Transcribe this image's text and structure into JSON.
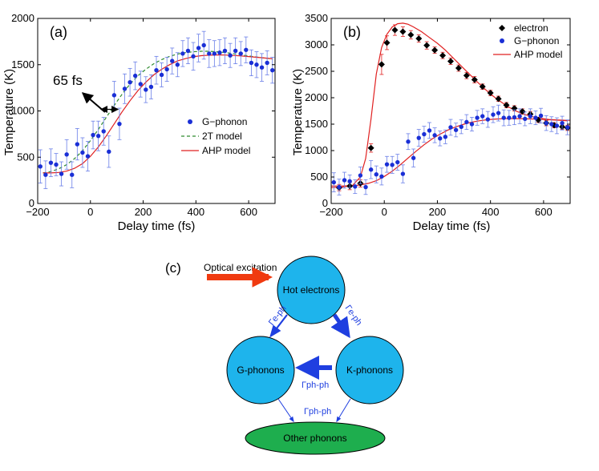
{
  "chart_data": [
    {
      "id": "a",
      "type": "scatter+line",
      "panel_label": "(a)",
      "xlabel": "Delay time (fs)",
      "ylabel": "Temperature (K)",
      "xlim": [
        -200,
        700
      ],
      "ylim": [
        0,
        2000
      ],
      "xticks": [
        -200,
        0,
        200,
        400,
        600
      ],
      "yticks": [
        0,
        500,
        1000,
        1500,
        2000
      ],
      "legend_position": "right-middle",
      "annotation": {
        "text": "65 fs",
        "x1": 40,
        "x2": 105,
        "y": 1000
      },
      "series": [
        {
          "name": "G−phonon",
          "kind": "points-with-errorbars",
          "color": "#1a2fd6",
          "x": [
            -190,
            -170,
            -150,
            -130,
            -110,
            -90,
            -70,
            -50,
            -30,
            -10,
            10,
            30,
            50,
            70,
            90,
            110,
            130,
            150,
            170,
            190,
            210,
            230,
            250,
            270,
            290,
            310,
            330,
            350,
            370,
            390,
            410,
            430,
            450,
            470,
            490,
            510,
            530,
            550,
            570,
            590,
            610,
            630,
            650,
            670,
            690
          ],
          "y": [
            400,
            310,
            440,
            420,
            320,
            530,
            310,
            640,
            550,
            510,
            740,
            730,
            780,
            560,
            1170,
            860,
            1240,
            1310,
            1380,
            1290,
            1230,
            1260,
            1440,
            1390,
            1450,
            1540,
            1500,
            1620,
            1650,
            1590,
            1680,
            1710,
            1620,
            1620,
            1630,
            1650,
            1600,
            1650,
            1620,
            1660,
            1520,
            1500,
            1470,
            1520,
            1440
          ],
          "err": [
            180,
            150,
            150,
            120,
            130,
            160,
            140,
            170,
            160,
            160,
            150,
            160,
            150,
            170,
            150,
            170,
            160,
            150,
            150,
            140,
            140,
            130,
            150,
            130,
            130,
            140,
            130,
            140,
            140,
            150,
            150,
            150,
            150,
            140,
            140,
            140,
            130,
            140,
            130,
            140,
            140,
            140,
            150,
            130,
            140
          ]
        },
        {
          "name": "2T model",
          "kind": "dashed-line",
          "color": "#2e8b2e",
          "x": [
            -180,
            -150,
            -120,
            -90,
            -60,
            -30,
            0,
            30,
            60,
            90,
            120,
            150,
            180,
            210,
            240,
            270,
            300,
            330,
            360,
            390,
            420,
            450,
            480,
            510,
            540,
            570,
            600,
            630,
            660,
            690
          ],
          "y": [
            330,
            345,
            375,
            420,
            485,
            570,
            680,
            800,
            930,
            1060,
            1180,
            1290,
            1380,
            1450,
            1510,
            1555,
            1590,
            1615,
            1630,
            1640,
            1645,
            1645,
            1640,
            1632,
            1620,
            1607,
            1595,
            1583,
            1572,
            1562
          ]
        },
        {
          "name": "AHP model",
          "kind": "line",
          "color": "#e02020",
          "x": [
            -180,
            -150,
            -120,
            -90,
            -60,
            -30,
            0,
            30,
            60,
            90,
            120,
            150,
            180,
            210,
            240,
            270,
            300,
            330,
            360,
            390,
            420,
            450,
            480,
            510,
            540,
            570,
            600,
            630,
            660,
            690
          ],
          "y": [
            330,
            330,
            335,
            350,
            380,
            430,
            510,
            610,
            730,
            860,
            990,
            1110,
            1220,
            1310,
            1390,
            1450,
            1500,
            1540,
            1565,
            1585,
            1597,
            1603,
            1605,
            1604,
            1600,
            1595,
            1588,
            1580,
            1572,
            1564
          ]
        }
      ]
    },
    {
      "id": "b",
      "type": "scatter+line",
      "panel_label": "(b)",
      "xlabel": "Delay time (fs)",
      "ylabel": "Temperature (K)",
      "xlim": [
        -200,
        700
      ],
      "ylim": [
        0,
        3500
      ],
      "xticks": [
        -200,
        0,
        200,
        400,
        600
      ],
      "yticks": [
        0,
        500,
        1000,
        1500,
        2000,
        2500,
        3000,
        3500
      ],
      "legend_position": "top-right",
      "series": [
        {
          "name": "electron",
          "kind": "diamond-points",
          "color": "#000000",
          "x": [
            -170,
            -130,
            -90,
            -50,
            -10,
            10,
            40,
            70,
            100,
            130,
            160,
            190,
            220,
            250,
            280,
            310,
            340,
            370,
            400,
            430,
            460,
            490,
            520,
            550,
            580,
            610,
            640,
            670,
            690
          ],
          "y": [
            300,
            330,
            380,
            1050,
            2630,
            3040,
            3280,
            3250,
            3190,
            3120,
            2990,
            2900,
            2800,
            2690,
            2560,
            2420,
            2340,
            2210,
            2090,
            1980,
            1860,
            1800,
            1740,
            1690,
            1580,
            1520,
            1480,
            1450,
            1430
          ],
          "err": [
            60,
            70,
            70,
            80,
            190,
            130,
            100,
            90,
            80,
            70,
            70,
            60,
            60,
            60,
            60,
            60,
            60,
            50,
            50,
            50,
            50,
            50,
            50,
            50,
            50,
            50,
            50,
            50,
            50
          ]
        },
        {
          "name": "G−phonon",
          "kind": "points-with-errorbars",
          "color": "#1a2fd6",
          "x": [
            -190,
            -170,
            -150,
            -130,
            -110,
            -90,
            -70,
            -50,
            -30,
            -10,
            10,
            30,
            50,
            70,
            90,
            110,
            130,
            150,
            170,
            190,
            210,
            230,
            250,
            270,
            290,
            310,
            330,
            350,
            370,
            390,
            410,
            430,
            450,
            470,
            490,
            510,
            530,
            550,
            570,
            590,
            610,
            630,
            650,
            670,
            690
          ],
          "y": [
            400,
            310,
            440,
            420,
            320,
            530,
            310,
            640,
            550,
            510,
            740,
            730,
            780,
            560,
            1170,
            860,
            1240,
            1310,
            1380,
            1290,
            1230,
            1260,
            1440,
            1390,
            1450,
            1540,
            1500,
            1620,
            1650,
            1590,
            1680,
            1710,
            1620,
            1620,
            1630,
            1650,
            1600,
            1650,
            1620,
            1660,
            1520,
            1500,
            1470,
            1520,
            1440
          ],
          "err": [
            180,
            150,
            150,
            120,
            130,
            160,
            140,
            170,
            160,
            160,
            150,
            160,
            150,
            170,
            150,
            170,
            160,
            150,
            150,
            140,
            140,
            130,
            150,
            130,
            130,
            140,
            130,
            140,
            140,
            150,
            150,
            150,
            150,
            140,
            140,
            140,
            130,
            140,
            130,
            140,
            140,
            140,
            150,
            130,
            140
          ]
        },
        {
          "name": "AHP model (electron)",
          "kind": "line",
          "color": "#e02020",
          "x": [
            -200,
            -160,
            -120,
            -90,
            -70,
            -50,
            -30,
            -10,
            10,
            30,
            50,
            70,
            90,
            110,
            140,
            170,
            200,
            230,
            260,
            290,
            320,
            350,
            380,
            410,
            440,
            470,
            500,
            530,
            560,
            590,
            620,
            650,
            680,
            700
          ],
          "y": [
            300,
            310,
            340,
            500,
            850,
            1600,
            2450,
            2950,
            3200,
            3340,
            3400,
            3410,
            3390,
            3340,
            3250,
            3140,
            3030,
            2900,
            2750,
            2600,
            2450,
            2300,
            2160,
            2030,
            1920,
            1820,
            1740,
            1680,
            1640,
            1610,
            1590,
            1580,
            1575,
            1572
          ]
        },
        {
          "name": "AHP model (G−phonon)",
          "kind": "line",
          "color": "#e02020",
          "x": [
            -200,
            -160,
            -120,
            -90,
            -60,
            -30,
            0,
            30,
            60,
            90,
            120,
            150,
            180,
            210,
            240,
            270,
            300,
            330,
            360,
            390,
            420,
            450,
            480,
            510,
            540,
            570,
            600,
            630,
            660,
            690
          ],
          "y": [
            330,
            330,
            335,
            350,
            380,
            430,
            510,
            610,
            730,
            860,
            990,
            1110,
            1220,
            1310,
            1390,
            1450,
            1500,
            1540,
            1565,
            1585,
            1597,
            1603,
            1605,
            1604,
            1600,
            1595,
            1588,
            1580,
            1572,
            1564
          ]
        }
      ],
      "legend": [
        "electron",
        "G−phonon",
        "AHP model"
      ]
    }
  ],
  "diagram": {
    "panel_label": "(c)",
    "excitation_label": "Optical excitation",
    "nodes": {
      "hot": "Hot electrons",
      "g": "G-phonons",
      "k": "K-phonons",
      "other": "Other phonons"
    },
    "rates": {
      "hot_to_g": "Γe-ph",
      "hot_to_k": "Γe-ph",
      "k_to_g": "Γph-ph",
      "to_other": "Γph-ph"
    },
    "colors": {
      "circle": "#1eb4ec",
      "ellipse": "#1eae4e",
      "arrow": "#1f3fe0",
      "excitation": "#f03a10"
    }
  },
  "legend_a": [
    "G−phonon",
    "2T model",
    "AHP model"
  ]
}
